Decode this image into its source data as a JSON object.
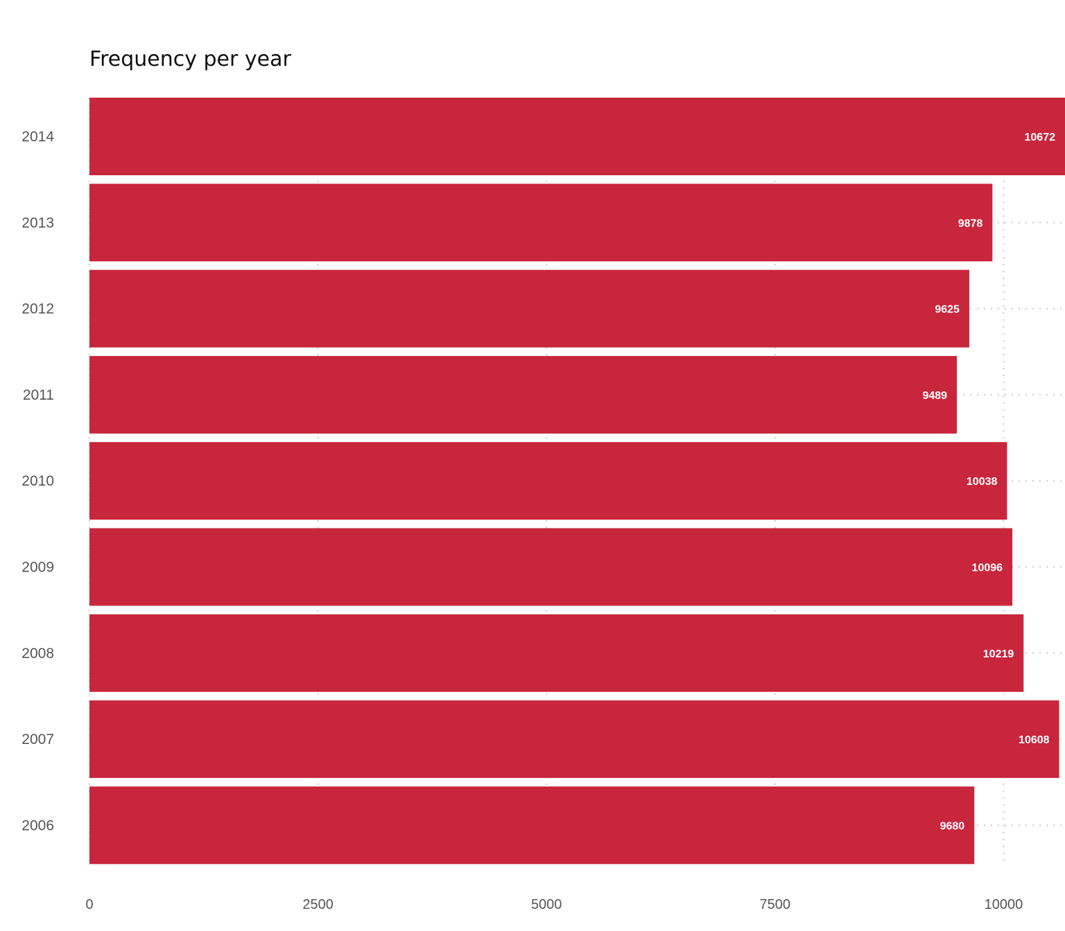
{
  "chart_data": {
    "type": "bar",
    "orientation": "horizontal",
    "title": "Frequency per year",
    "xlabel": "",
    "ylabel": "",
    "categories": [
      "2014",
      "2013",
      "2012",
      "2011",
      "2010",
      "2009",
      "2008",
      "2007",
      "2006"
    ],
    "values": [
      10672,
      9878,
      9625,
      9489,
      10038,
      10096,
      10219,
      10608,
      9680
    ],
    "xlim": [
      0,
      10672
    ],
    "x_ticks": [
      0,
      2500,
      5000,
      7500,
      10000
    ],
    "grid": true,
    "data_labels": true,
    "bar_color": "#c8263d",
    "grid_color": "#c8c8c8"
  }
}
